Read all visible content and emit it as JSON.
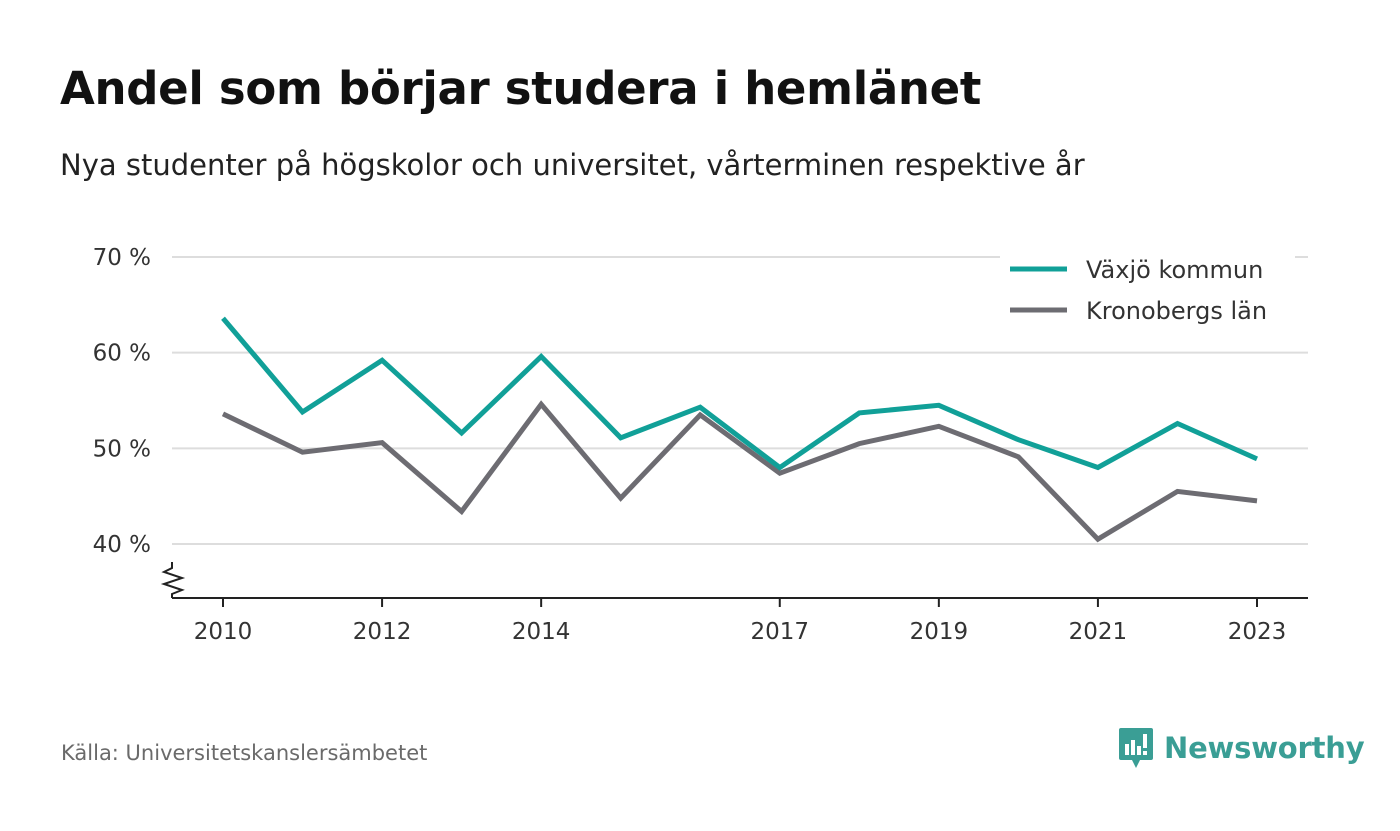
{
  "header": {
    "title": "Andel som börjar studera i hemlänet",
    "subtitle": "Nya studenter på högskolor och universitet, vårterminen respektive år"
  },
  "footer": {
    "source": "Källa: Universitetskanslersämbetet",
    "brand": "Newsworthy"
  },
  "colors": {
    "series_1": "#11a098",
    "series_2": "#6d6c72",
    "grid": "#dddddd",
    "brand": "#3a9e95"
  },
  "chart_data": {
    "type": "line",
    "title": "Andel som börjar studera i hemlänet",
    "subtitle": "Nya studenter på högskolor och universitet, vårterminen respektive år",
    "xlabel": "",
    "ylabel": "",
    "x": [
      2010,
      2011,
      2012,
      2013,
      2014,
      2015,
      2016,
      2017,
      2018,
      2019,
      2020,
      2021,
      2022,
      2023
    ],
    "x_tick_labels": [
      "2010",
      "2012",
      "2014",
      "2017",
      "2019",
      "2021",
      "2023"
    ],
    "y_tick_labels": [
      "70 %",
      "60 %",
      "50 %",
      "40 %"
    ],
    "y_ticks": [
      70,
      60,
      50,
      40
    ],
    "ylim": [
      34.5,
      70
    ],
    "y_axis_break": true,
    "grid": true,
    "legend_position": "top-right",
    "series": [
      {
        "name": "Växjö kommun",
        "values": [
          63.6,
          53.8,
          59.2,
          51.6,
          59.6,
          51.1,
          54.3,
          48.0,
          53.7,
          54.5,
          50.9,
          48.0,
          52.6,
          48.9
        ]
      },
      {
        "name": "Kronobergs län",
        "values": [
          53.6,
          49.6,
          50.6,
          43.4,
          54.6,
          44.8,
          53.5,
          47.4,
          50.5,
          52.3,
          49.1,
          40.5,
          45.5,
          44.5
        ]
      }
    ]
  }
}
